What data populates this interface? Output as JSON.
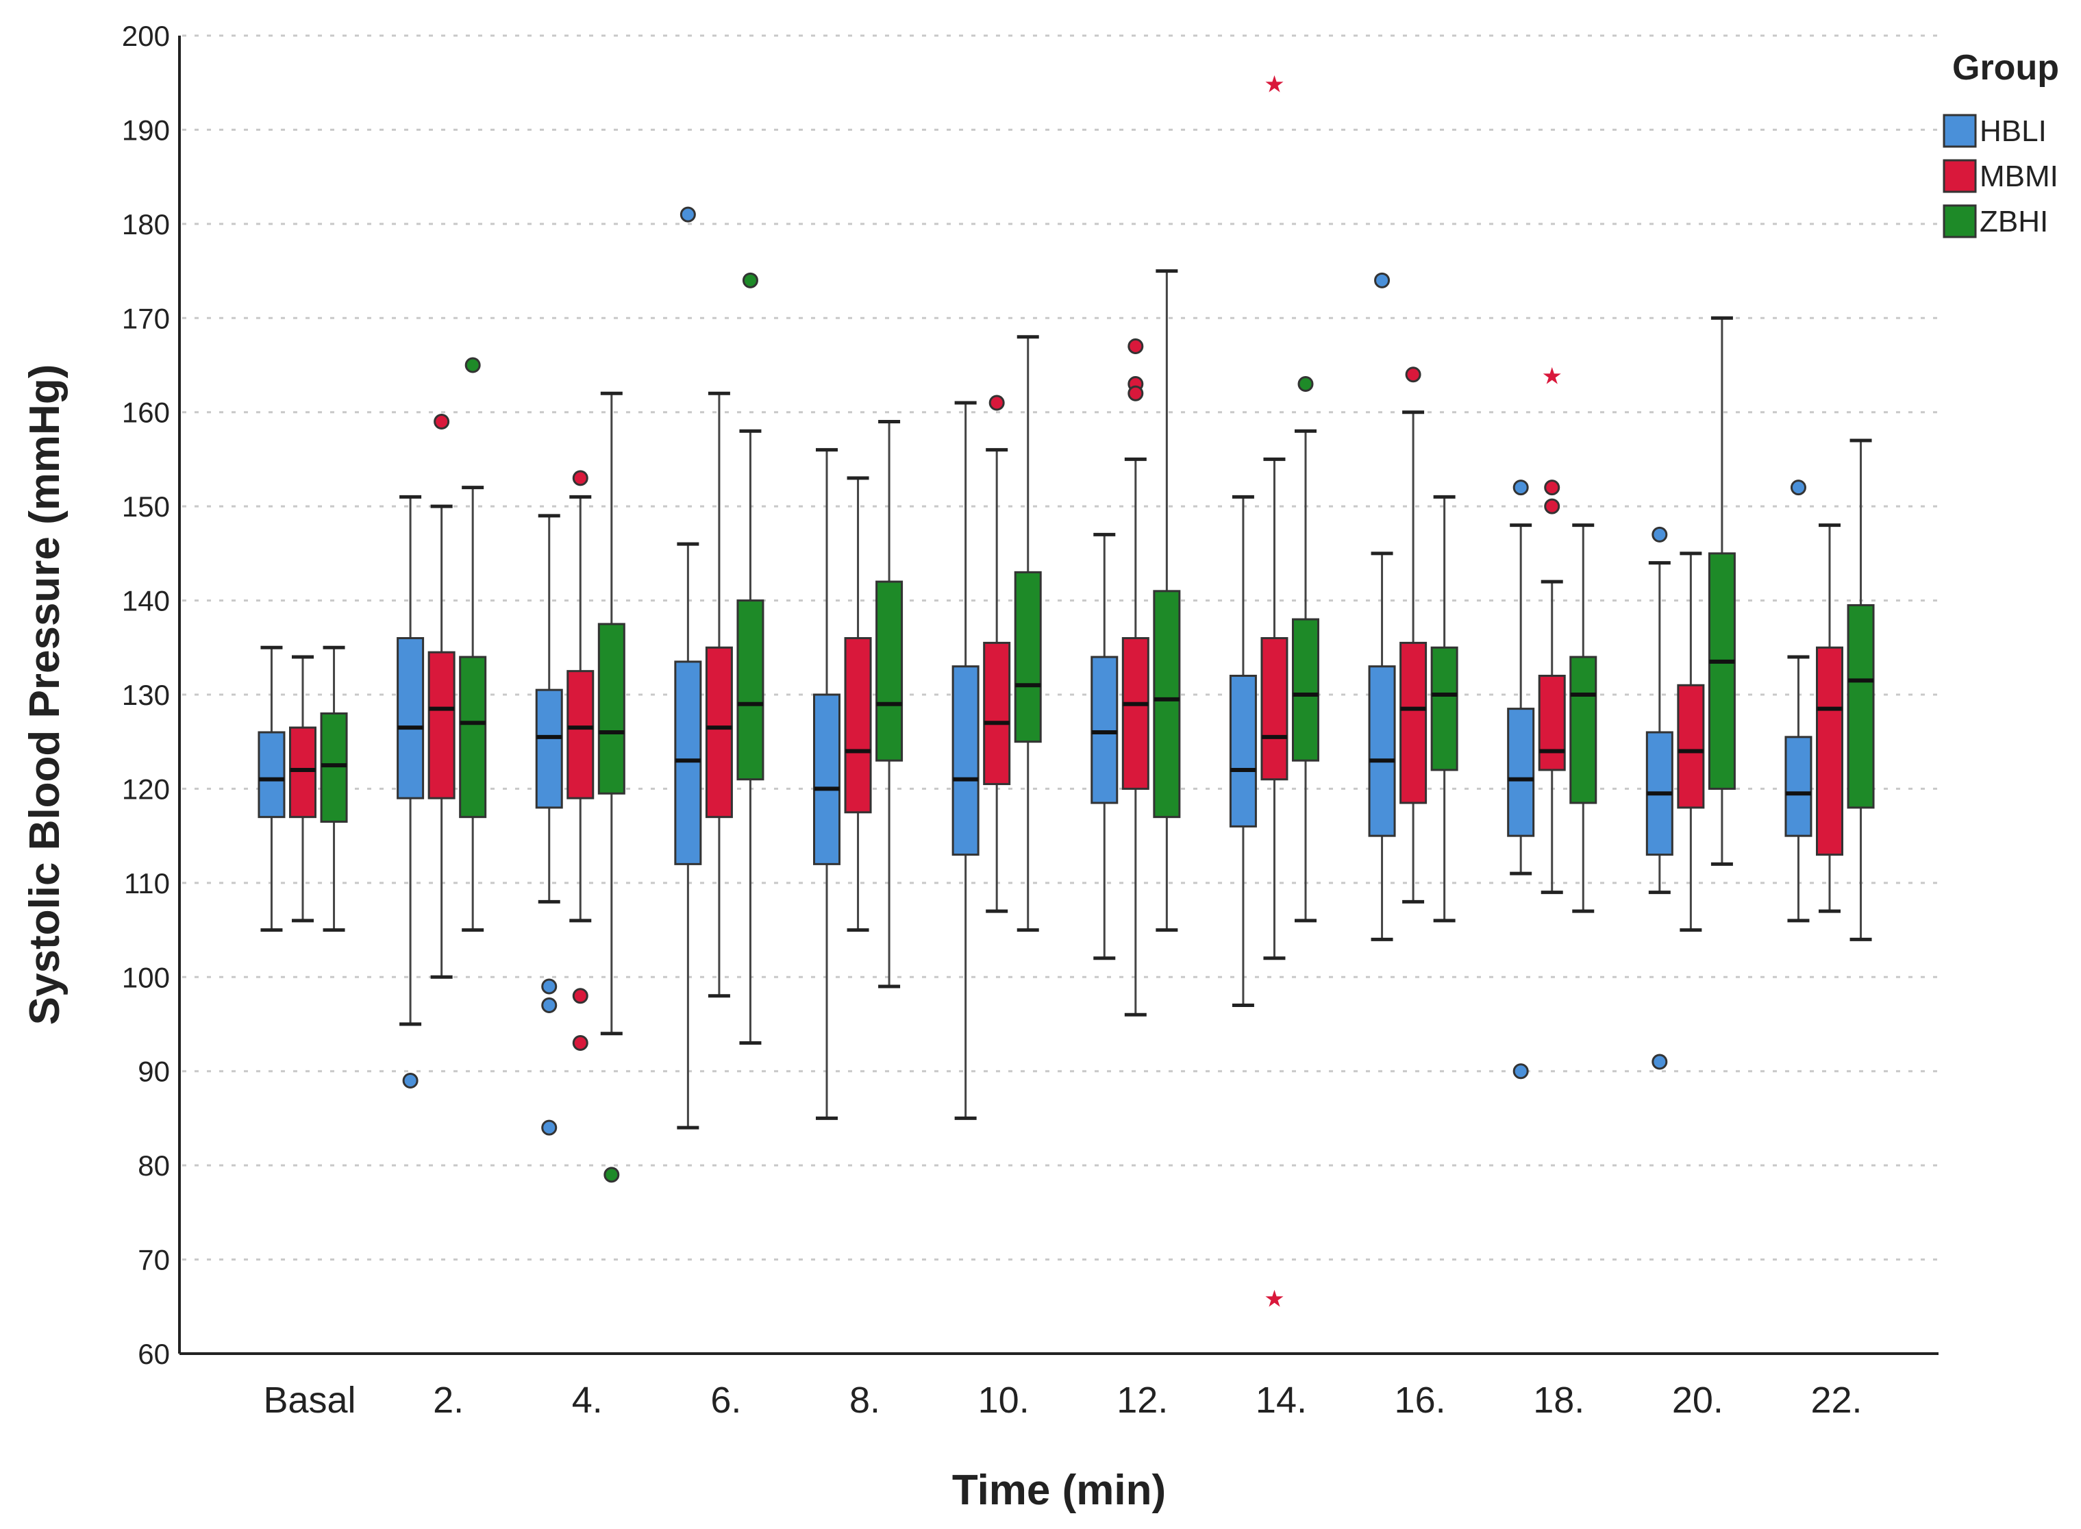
{
  "chart_data": {
    "type": "boxplot",
    "xlabel": "Time (min)",
    "ylabel": "Systolic Blood Pressure (mmHg)",
    "ylim": [
      60,
      200
    ],
    "yticks": [
      60,
      70,
      80,
      90,
      100,
      110,
      120,
      130,
      140,
      150,
      160,
      170,
      180,
      190,
      200
    ],
    "grid": true,
    "legend_title": "Group",
    "legend_position": "top-right",
    "categories": [
      "Basal",
      "2.",
      "4.",
      "6.",
      "8.",
      "10.",
      "12.",
      "14.",
      "16.",
      "18.",
      "20.",
      "22."
    ],
    "series": [
      {
        "name": "HBLI",
        "color": "#4a90d9",
        "boxes": [
          {
            "min": 105,
            "q1": 117,
            "median": 121,
            "q3": 126,
            "max": 135,
            "outliers": [],
            "extremes": []
          },
          {
            "min": 95,
            "q1": 119,
            "median": 126.5,
            "q3": 136,
            "max": 151,
            "outliers": [
              89
            ],
            "extremes": []
          },
          {
            "min": 108,
            "q1": 118,
            "median": 125.5,
            "q3": 130.5,
            "max": 149,
            "outliers": [
              99,
              97,
              84
            ],
            "extremes": []
          },
          {
            "min": 84,
            "q1": 112,
            "median": 123,
            "q3": 133.5,
            "max": 146,
            "outliers": [
              181
            ],
            "extremes": []
          },
          {
            "min": 85,
            "q1": 112,
            "median": 120,
            "q3": 130,
            "max": 156,
            "outliers": [],
            "extremes": []
          },
          {
            "min": 85,
            "q1": 113,
            "median": 121,
            "q3": 133,
            "max": 161,
            "outliers": [],
            "extremes": []
          },
          {
            "min": 102,
            "q1": 118.5,
            "median": 126,
            "q3": 134,
            "max": 147,
            "outliers": [],
            "extremes": []
          },
          {
            "min": 97,
            "q1": 116,
            "median": 122,
            "q3": 132,
            "max": 151,
            "outliers": [],
            "extremes": []
          },
          {
            "min": 104,
            "q1": 115,
            "median": 123,
            "q3": 133,
            "max": 145,
            "outliers": [
              174
            ],
            "extremes": []
          },
          {
            "min": 111,
            "q1": 115,
            "median": 121,
            "q3": 128.5,
            "max": 148,
            "outliers": [
              152,
              90
            ],
            "extremes": []
          },
          {
            "min": 109,
            "q1": 113,
            "median": 119.5,
            "q3": 126,
            "max": 144,
            "outliers": [
              147,
              91
            ],
            "extremes": []
          },
          {
            "min": 106,
            "q1": 115,
            "median": 119.5,
            "q3": 125.5,
            "max": 134,
            "outliers": [
              152
            ],
            "extremes": []
          }
        ]
      },
      {
        "name": "MBMI",
        "color": "#d9183b",
        "boxes": [
          {
            "min": 106,
            "q1": 117,
            "median": 122,
            "q3": 126.5,
            "max": 134,
            "outliers": [],
            "extremes": []
          },
          {
            "min": 100,
            "q1": 119,
            "median": 128.5,
            "q3": 134.5,
            "max": 150,
            "outliers": [
              159
            ],
            "extremes": []
          },
          {
            "min": 106,
            "q1": 119,
            "median": 126.5,
            "q3": 132.5,
            "max": 151,
            "outliers": [
              153,
              98,
              93
            ],
            "extremes": []
          },
          {
            "min": 98,
            "q1": 117,
            "median": 126.5,
            "q3": 135,
            "max": 162,
            "outliers": [],
            "extremes": []
          },
          {
            "min": 105,
            "q1": 117.5,
            "median": 124,
            "q3": 136,
            "max": 153,
            "outliers": [],
            "extremes": []
          },
          {
            "min": 107,
            "q1": 120.5,
            "median": 127,
            "q3": 135.5,
            "max": 156,
            "outliers": [
              161
            ],
            "extremes": []
          },
          {
            "min": 96,
            "q1": 120,
            "median": 129,
            "q3": 136,
            "max": 155,
            "outliers": [
              167,
              163,
              162
            ],
            "extremes": []
          },
          {
            "min": 102,
            "q1": 121,
            "median": 125.5,
            "q3": 136,
            "max": 155,
            "outliers": [],
            "extremes": [
              195,
              66
            ]
          },
          {
            "min": 108,
            "q1": 118.5,
            "median": 128.5,
            "q3": 135.5,
            "max": 160,
            "outliers": [
              164
            ],
            "extremes": []
          },
          {
            "min": 109,
            "q1": 122,
            "median": 124,
            "q3": 132,
            "max": 142,
            "outliers": [
              152,
              150
            ],
            "extremes": [
              164
            ]
          },
          {
            "min": 105,
            "q1": 118,
            "median": 124,
            "q3": 131,
            "max": 145,
            "outliers": [],
            "extremes": []
          },
          {
            "min": 107,
            "q1": 113,
            "median": 128.5,
            "q3": 135,
            "max": 148,
            "outliers": [],
            "extremes": []
          }
        ]
      },
      {
        "name": "ZBHI",
        "color": "#1e8a28",
        "boxes": [
          {
            "min": 105,
            "q1": 116.5,
            "median": 122.5,
            "q3": 128,
            "max": 135,
            "outliers": [],
            "extremes": []
          },
          {
            "min": 105,
            "q1": 117,
            "median": 127,
            "q3": 134,
            "max": 152,
            "outliers": [
              165
            ],
            "extremes": []
          },
          {
            "min": 94,
            "q1": 119.5,
            "median": 126,
            "q3": 137.5,
            "max": 162,
            "outliers": [
              79
            ],
            "extremes": []
          },
          {
            "min": 93,
            "q1": 121,
            "median": 129,
            "q3": 140,
            "max": 158,
            "outliers": [
              174
            ],
            "extremes": []
          },
          {
            "min": 99,
            "q1": 123,
            "median": 129,
            "q3": 142,
            "max": 159,
            "outliers": [],
            "extremes": []
          },
          {
            "min": 105,
            "q1": 125,
            "median": 131,
            "q3": 143,
            "max": 168,
            "outliers": [],
            "extremes": []
          },
          {
            "min": 105,
            "q1": 117,
            "median": 129.5,
            "q3": 141,
            "max": 175,
            "outliers": [],
            "extremes": []
          },
          {
            "min": 106,
            "q1": 123,
            "median": 130,
            "q3": 138,
            "max": 158,
            "outliers": [
              163
            ],
            "extremes": []
          },
          {
            "min": 106,
            "q1": 122,
            "median": 130,
            "q3": 135,
            "max": 151,
            "outliers": [],
            "extremes": []
          },
          {
            "min": 107,
            "q1": 118.5,
            "median": 130,
            "q3": 134,
            "max": 148,
            "outliers": [],
            "extremes": []
          },
          {
            "min": 112,
            "q1": 120,
            "median": 133.5,
            "q3": 145,
            "max": 170,
            "outliers": [],
            "extremes": []
          },
          {
            "min": 104,
            "q1": 118,
            "median": 131.5,
            "q3": 139.5,
            "max": 157,
            "outliers": [],
            "extremes": []
          }
        ]
      }
    ]
  }
}
